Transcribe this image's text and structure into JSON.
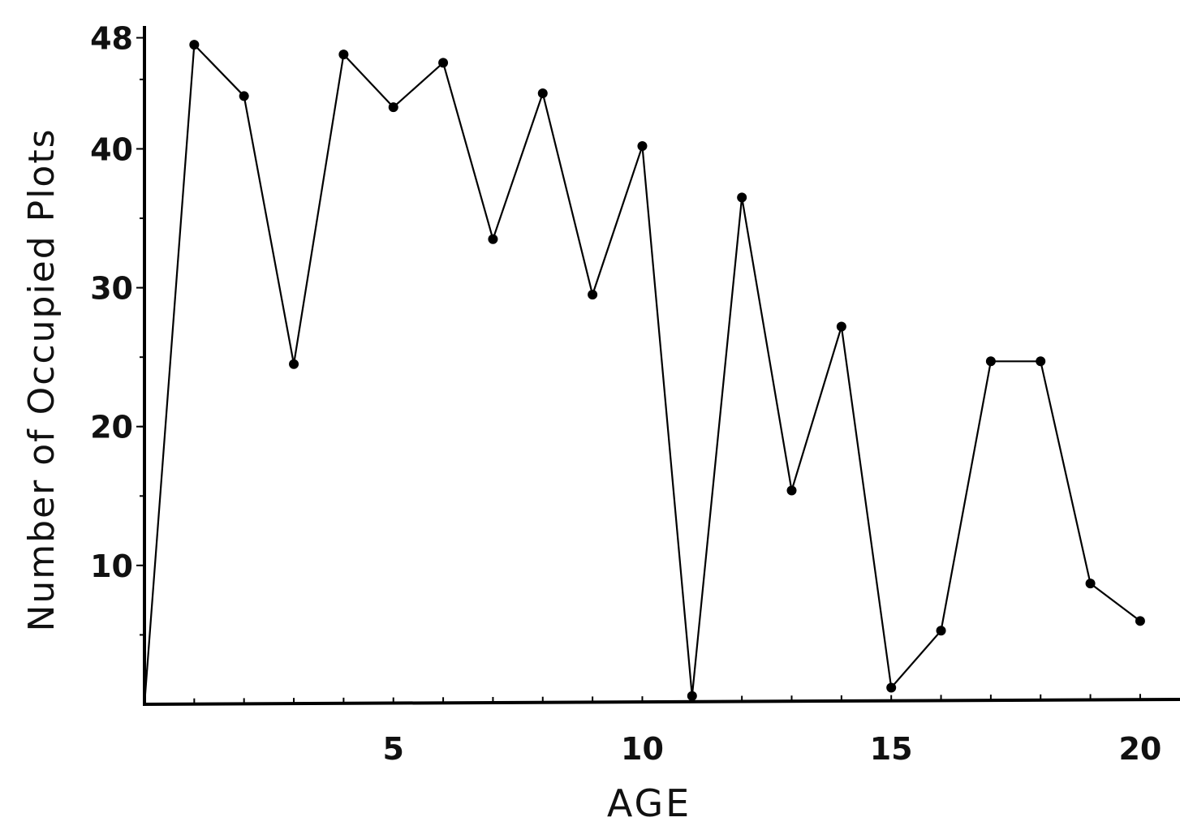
{
  "chart_data": {
    "type": "line",
    "title": "",
    "xlabel": "AGE",
    "ylabel": "Number of Occupied Plots",
    "xlim": [
      0,
      20.8
    ],
    "ylim": [
      0,
      48.5
    ],
    "x_ticks": [
      5,
      10,
      15,
      20
    ],
    "x_tick_labels": [
      "5",
      "10",
      "15",
      "20"
    ],
    "y_ticks": [
      10,
      20,
      30,
      40,
      48
    ],
    "y_tick_labels": [
      "10",
      "20",
      "30",
      "40",
      "48"
    ],
    "grid": false,
    "series": [
      {
        "x": [
          0,
          1,
          2,
          3,
          4,
          5,
          6,
          7,
          8,
          9,
          10,
          11,
          12,
          13,
          14,
          15,
          16,
          17,
          18,
          19,
          20
        ],
        "y": [
          0,
          47.5,
          43.8,
          24.5,
          46.8,
          43.0,
          46.2,
          33.5,
          44.0,
          29.5,
          40.2,
          0.6,
          36.5,
          15.4,
          27.2,
          1.2,
          5.3,
          24.7,
          24.7,
          8.7,
          6.0
        ]
      }
    ]
  }
}
